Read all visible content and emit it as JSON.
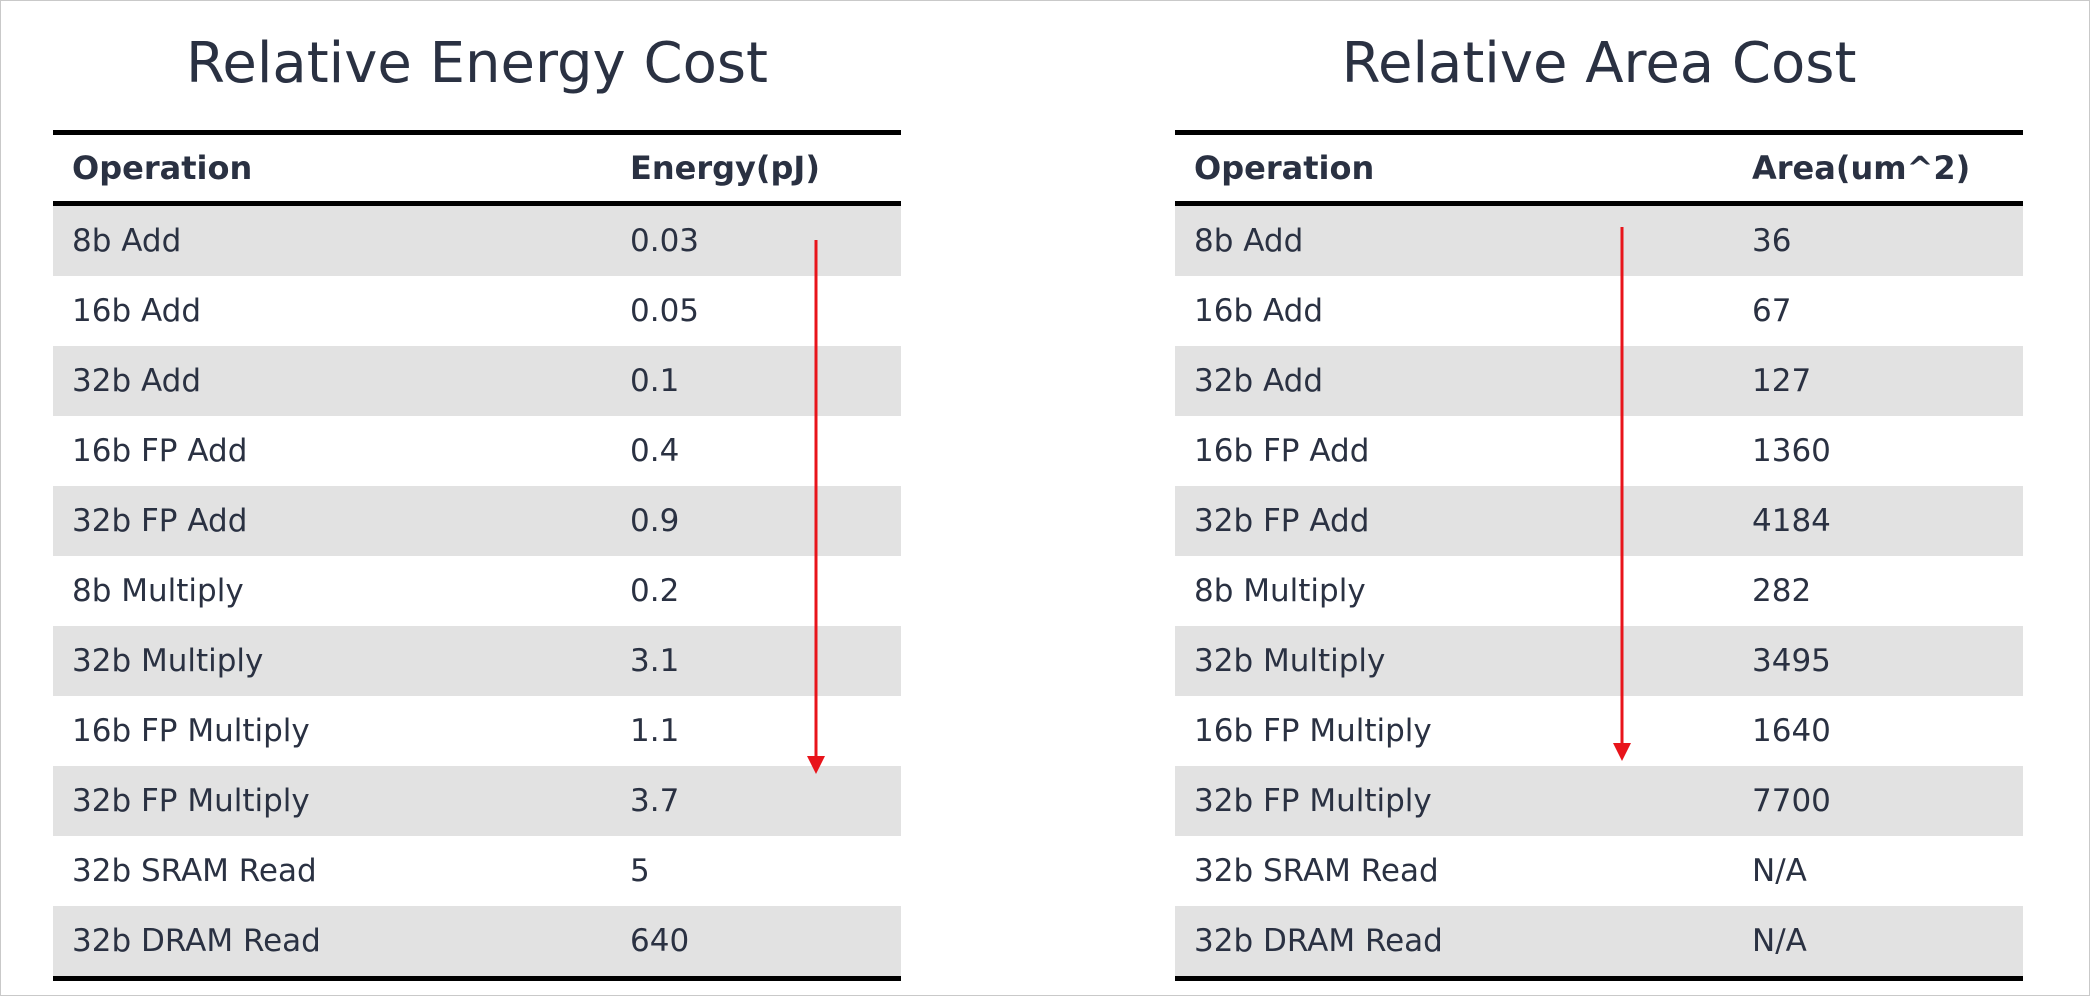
{
  "energy": {
    "title": "Relative Energy Cost",
    "headers": [
      "Operation",
      "Energy(pJ)"
    ],
    "rows": [
      [
        "8b Add",
        "0.03"
      ],
      [
        "16b Add",
        "0.05"
      ],
      [
        "32b Add",
        "0.1"
      ],
      [
        "16b FP Add",
        "0.4"
      ],
      [
        "32b FP Add",
        "0.9"
      ],
      [
        "8b Multiply",
        "0.2"
      ],
      [
        "32b Multiply",
        "3.1"
      ],
      [
        "16b FP Multiply",
        "1.1"
      ],
      [
        "32b FP Multiply",
        "3.7"
      ],
      [
        "32b SRAM Read",
        "5"
      ],
      [
        "32b DRAM Read",
        "640"
      ]
    ]
  },
  "area": {
    "title": "Relative Area Cost",
    "headers": [
      "Operation",
      "Area(um^2)"
    ],
    "rows": [
      [
        "8b Add",
        "36"
      ],
      [
        "16b Add",
        "67"
      ],
      [
        "32b Add",
        "127"
      ],
      [
        "16b FP Add",
        "1360"
      ],
      [
        "32b FP Add",
        "4184"
      ],
      [
        "8b Multiply",
        "282"
      ],
      [
        "32b Multiply",
        "3495"
      ],
      [
        "16b FP Multiply",
        "1640"
      ],
      [
        "32b FP Multiply",
        "7700"
      ],
      [
        "32b SRAM Read",
        "N/A"
      ],
      [
        "32b DRAM Read",
        "N/A"
      ]
    ]
  },
  "colors": {
    "arrow": "#e8141b",
    "text": "#2a3142",
    "row_shade": "#e2e2e2",
    "rule": "#000000"
  },
  "icons": {
    "trend_arrow": "down-arrow-icon"
  }
}
